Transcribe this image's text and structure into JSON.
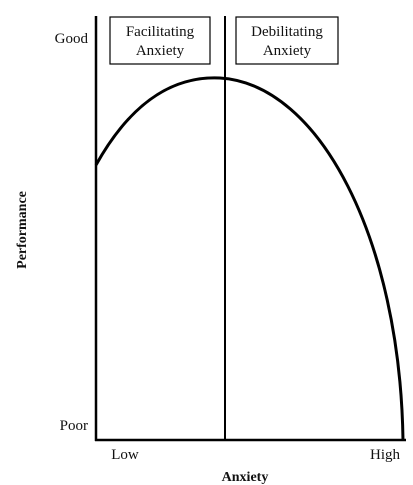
{
  "axes": {
    "y_label": "Performance",
    "x_label": "Anxiety",
    "y_top": "Good",
    "y_bottom": "Poor",
    "x_left": "Low",
    "x_right": "High"
  },
  "regions": [
    {
      "lines": [
        "Facilitating",
        "Anxiety"
      ]
    },
    {
      "lines": [
        "Debilitating",
        "Anxiety"
      ]
    }
  ]
}
